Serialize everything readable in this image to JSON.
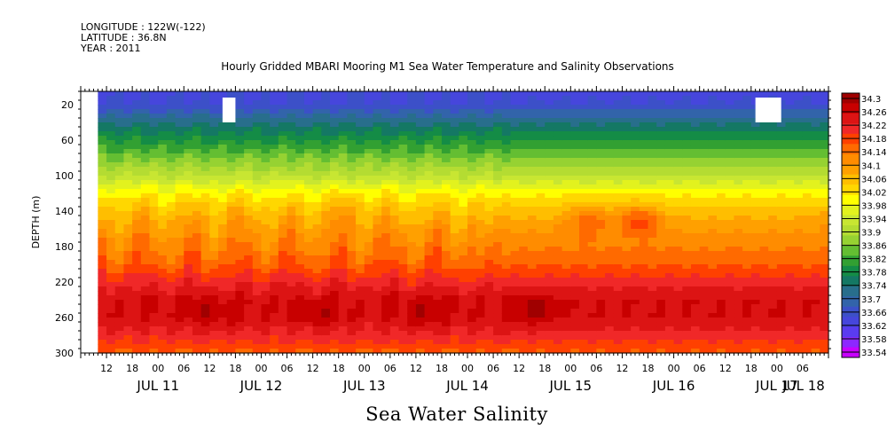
{
  "header": {
    "longitude": "LONGITUDE : 122W(-122)",
    "latitude": "LATITUDE : 36.8N",
    "year": "YEAR : 2011"
  },
  "chart_data": {
    "type": "heatmap",
    "title": "Hourly Gridded MBARI Mooring M1 Sea Water Temperature and Salinity Observations",
    "subtitle": "Sea Water Salinity",
    "ylabel": "DEPTH (m)",
    "ylim": [
      300,
      5
    ],
    "y_ticks": [
      "20",
      "60",
      "100",
      "140",
      "180",
      "220",
      "260",
      "300"
    ],
    "x_hour_ticks": [
      "12",
      "18",
      "00",
      "06",
      "12",
      "18",
      "00",
      "06",
      "12",
      "18",
      "00",
      "06",
      "12",
      "18",
      "00",
      "06",
      "12",
      "18",
      "00",
      "06",
      "12",
      "18",
      "00",
      "06",
      "12",
      "18",
      "00",
      "06"
    ],
    "x_date_labels": [
      "JUL 11",
      "JUL 12",
      "JUL 13",
      "JUL 14",
      "JUL 15",
      "JUL 16",
      "JUL 17",
      "JUL 18"
    ],
    "x_start": "2011-07-11 06:00",
    "x_end": "2011-07-18 12:00",
    "data_start": "2011-07-11 10:00",
    "colorbar_labels": [
      "34.3",
      "34.26",
      "34.22",
      "34.18",
      "34.14",
      "34.1",
      "34.06",
      "34.02",
      "33.98",
      "33.94",
      "33.9",
      "33.86",
      "33.82",
      "33.78",
      "33.74",
      "33.7",
      "33.66",
      "33.62",
      "33.58",
      "33.54"
    ],
    "colorbar_colors": [
      "#a00000",
      "#c80000",
      "#dc1414",
      "#f02828",
      "#ff4000",
      "#ff6a00",
      "#ff8c00",
      "#ffa000",
      "#ffbe00",
      "#ffd700",
      "#ffff00",
      "#e2f21e",
      "#c8e632",
      "#b4dc32",
      "#96d232",
      "#64be32",
      "#32a032",
      "#148c46",
      "#147864",
      "#286e8c",
      "#3264aa",
      "#3c50c8",
      "#4646dc",
      "#5a3cf0",
      "#8c28ff",
      "#c800ff"
    ],
    "depth_profile": [
      {
        "depth": 5,
        "value": 33.65
      },
      {
        "depth": 20,
        "value": 33.66
      },
      {
        "depth": 40,
        "value": 33.74
      },
      {
        "depth": 60,
        "value": 33.8
      },
      {
        "depth": 80,
        "value": 33.86
      },
      {
        "depth": 100,
        "value": 33.92
      },
      {
        "depth": 120,
        "value": 34.0
      },
      {
        "depth": 140,
        "value": 34.05
      },
      {
        "depth": 160,
        "value": 34.09
      },
      {
        "depth": 180,
        "value": 34.12
      },
      {
        "depth": 200,
        "value": 34.15
      },
      {
        "depth": 220,
        "value": 34.2
      },
      {
        "depth": 240,
        "value": 34.24
      },
      {
        "depth": 260,
        "value": 34.24
      },
      {
        "depth": 280,
        "value": 34.2
      },
      {
        "depth": 300,
        "value": 34.15
      }
    ],
    "features": [
      {
        "t": 30,
        "depth": 255,
        "value": 34.27
      },
      {
        "t": 55,
        "depth": 255,
        "value": 34.27
      },
      {
        "t": 80,
        "depth": 255,
        "value": 34.27
      },
      {
        "t": 105,
        "depth": 250,
        "value": 34.28
      },
      {
        "t": 118,
        "depth": 150,
        "value": 34.14
      },
      {
        "t": 130,
        "depth": 150,
        "value": 34.16
      },
      {
        "t": 178,
        "depth": 150,
        "value": 34.12
      },
      {
        "t": 200,
        "depth": 260,
        "value": 34.22
      },
      {
        "t": 35,
        "depth": 140,
        "value": 34.06
      },
      {
        "t": 62,
        "depth": 140,
        "value": 34.08
      }
    ],
    "gaps": [
      {
        "t0": 33,
        "t1": 36,
        "d0": 12,
        "d1": 40
      },
      {
        "t0": 157,
        "t1": 163,
        "d0": 12,
        "d1": 40
      }
    ],
    "grid": false
  }
}
